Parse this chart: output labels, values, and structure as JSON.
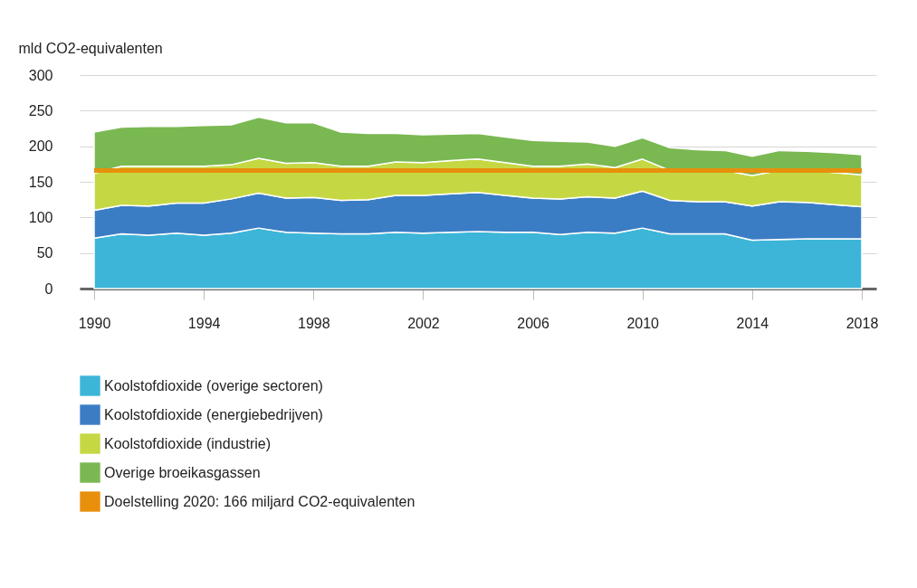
{
  "chart_data": {
    "type": "area",
    "stacked": true,
    "ylabel": "mld CO2-equivalenten",
    "x": [
      1990,
      1991,
      1992,
      1993,
      1994,
      1995,
      1996,
      1997,
      1998,
      1999,
      2000,
      2001,
      2002,
      2003,
      2004,
      2005,
      2006,
      2007,
      2008,
      2009,
      2010,
      2011,
      2012,
      2013,
      2014,
      2015,
      2016,
      2017,
      2018
    ],
    "xlim": [
      1990,
      2018
    ],
    "xticks": [
      1990,
      1994,
      1998,
      2002,
      2006,
      2010,
      2014,
      2018
    ],
    "ylim": [
      0,
      300
    ],
    "yticks": [
      0,
      50,
      100,
      150,
      200,
      250,
      300
    ],
    "grid": "y",
    "legend": "bottom",
    "series": [
      {
        "name": "Koolstofdioxide (overige sectoren)",
        "color": "#3db5d8",
        "values": [
          71,
          77,
          75,
          78,
          75,
          78,
          85,
          79,
          78,
          77,
          77,
          79,
          78,
          79,
          80,
          79,
          79,
          76,
          79,
          78,
          85,
          77,
          77,
          77,
          68,
          69,
          70,
          70,
          70
        ]
      },
      {
        "name": "Koolstofdioxide (energiebedrijven)",
        "color": "#3b7dc4",
        "values": [
          39,
          40,
          41,
          42,
          45,
          48,
          49,
          48,
          50,
          47,
          48,
          52,
          53,
          54,
          55,
          52,
          48,
          50,
          50,
          49,
          52,
          47,
          45,
          45,
          48,
          53,
          51,
          48,
          45
        ]
      },
      {
        "name": "Koolstofdioxide (industrie)",
        "color": "#c5d844",
        "values": [
          52,
          55,
          56,
          52,
          52,
          48,
          49,
          49,
          49,
          48,
          47,
          47,
          46,
          47,
          47,
          46,
          45,
          46,
          46,
          43,
          45,
          42,
          45,
          44,
          43,
          44,
          45,
          45,
          45
        ]
      },
      {
        "name": "Overige broeikasgassen",
        "color": "#7ab852",
        "values": [
          58,
          55,
          56,
          56,
          57,
          56,
          58,
          57,
          56,
          48,
          46,
          40,
          39,
          37,
          36,
          36,
          36,
          35,
          31,
          30,
          30,
          32,
          28,
          28,
          27,
          28,
          27,
          28,
          28
        ]
      }
    ],
    "ref_lines": [
      {
        "axis": "y",
        "value": 166,
        "label": "Doelstelling 2020: 166 miljard CO2-equivalenten",
        "color": "#e8900c"
      }
    ]
  }
}
